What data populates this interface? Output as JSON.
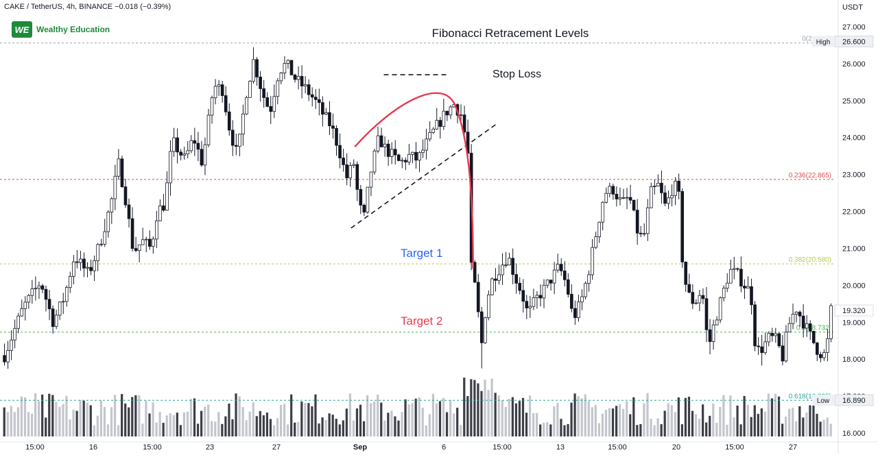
{
  "header": {
    "symbol_line": "CAKE / TetherUS, 4h, BINANCE  −0.018 (−0.39%)",
    "brand_name": "Wealthy Education",
    "brand_logo_text": "WE",
    "currency": "USDT"
  },
  "colors": {
    "up_candle": "#ffffff",
    "down_candle": "#131722",
    "volume_up": "#c3c6cc",
    "volume_down": "#3c3f47",
    "fib_0": "#9ca3ad",
    "fib_236": "#e04b4b",
    "fib_382": "#b8c94a",
    "fib_5": "#4caf50",
    "fib_618": "#26a69a",
    "target_1": "#2962ff",
    "target_2": "#e8384f",
    "arc": "#e8384f"
  },
  "chart_data": {
    "type": "candlestick",
    "title": "Fibonacci Retracement Levels",
    "timeframe": "4h",
    "y_axis": {
      "unit": "USDT",
      "ylim": [
        16.0,
        27.5
      ],
      "ticks": [
        "16.000",
        "17.000",
        "18.000",
        "19.000",
        "20.000",
        "21.000",
        "22.000",
        "23.000",
        "24.000",
        "25.000",
        "26.000",
        "27.000"
      ]
    },
    "x_axis": {
      "ticks": [
        "15:00",
        "16",
        "15:00",
        "23",
        "27",
        "Sep",
        "6",
        "15:00",
        "13",
        "15:00",
        "20",
        "15:00",
        "27"
      ]
    },
    "fib_levels": [
      {
        "ratio": "0",
        "value": 26.56,
        "label": "0(26.560)"
      },
      {
        "ratio": "0.236",
        "value": 22.865,
        "label": "0.236(22.865)"
      },
      {
        "ratio": "0.382",
        "value": 20.58,
        "label": "0.382(20.580)"
      },
      {
        "ratio": "0.5",
        "value": 18.732,
        "label": "0.5(18.732)"
      },
      {
        "ratio": "0.618",
        "value": 16.885,
        "label": "0.618(16.885)"
      }
    ],
    "price_markers": [
      {
        "tag": "High",
        "value": "26.600"
      },
      {
        "tag": "",
        "value": "19.320"
      },
      {
        "tag": "Low",
        "value": "16.890"
      }
    ],
    "last_price": 19.32,
    "annotations": {
      "stop_loss": "Stop Loss",
      "target_1": "Target 1",
      "target_2": "Target 2"
    },
    "trendlines": [
      {
        "name": "rising-trendline",
        "x_from": 27.7,
        "y_from": 21.55,
        "x_to": 39.4,
        "y_to": 24.4
      },
      {
        "name": "stop-loss-line",
        "x_from": 30.3,
        "y_from": 25.7,
        "x_to": 35.3,
        "y_to": 25.7
      }
    ],
    "arc": {
      "points": [
        [
          28.0,
          23.75
        ],
        [
          31.0,
          24.9
        ],
        [
          35.0,
          25.7
        ],
        [
          37.0,
          24.0
        ],
        [
          37.4,
          20.45
        ]
      ]
    },
    "key_points": [
      {
        "x": 0.0,
        "y": 18.1
      },
      {
        "x": 1.5,
        "y": 19.4
      },
      {
        "x": 2.9,
        "y": 20.1
      },
      {
        "x": 3.9,
        "y": 19.0
      },
      {
        "x": 4.8,
        "y": 19.7
      },
      {
        "x": 5.6,
        "y": 20.8
      },
      {
        "x": 6.7,
        "y": 20.3
      },
      {
        "x": 7.6,
        "y": 21.1
      },
      {
        "x": 8.5,
        "y": 22.2
      },
      {
        "x": 9.1,
        "y": 23.3
      },
      {
        "x": 9.6,
        "y": 22.5
      },
      {
        "x": 10.3,
        "y": 20.9
      },
      {
        "x": 11.0,
        "y": 21.2
      },
      {
        "x": 11.7,
        "y": 21.0
      },
      {
        "x": 12.2,
        "y": 22.0
      },
      {
        "x": 12.8,
        "y": 22.2
      },
      {
        "x": 13.4,
        "y": 23.9
      },
      {
        "x": 14.4,
        "y": 23.4
      },
      {
        "x": 15.1,
        "y": 24.0
      },
      {
        "x": 15.8,
        "y": 23.3
      },
      {
        "x": 16.7,
        "y": 25.4
      },
      {
        "x": 17.4,
        "y": 25.3
      },
      {
        "x": 18.0,
        "y": 24.2
      },
      {
        "x": 18.6,
        "y": 23.5
      },
      {
        "x": 19.3,
        "y": 25.2
      },
      {
        "x": 19.9,
        "y": 26.1
      },
      {
        "x": 20.6,
        "y": 25.2
      },
      {
        "x": 21.2,
        "y": 24.7
      },
      {
        "x": 21.9,
        "y": 25.8
      },
      {
        "x": 22.5,
        "y": 26.0
      },
      {
        "x": 23.2,
        "y": 25.6
      },
      {
        "x": 24.1,
        "y": 25.3
      },
      {
        "x": 24.8,
        "y": 25.0
      },
      {
        "x": 25.5,
        "y": 24.6
      },
      {
        "x": 26.1,
        "y": 24.3
      },
      {
        "x": 26.7,
        "y": 23.7
      },
      {
        "x": 27.3,
        "y": 22.9
      },
      {
        "x": 27.9,
        "y": 23.3
      },
      {
        "x": 28.3,
        "y": 22.2
      },
      {
        "x": 28.7,
        "y": 21.8
      },
      {
        "x": 29.2,
        "y": 23.0
      },
      {
        "x": 29.9,
        "y": 24.0
      },
      {
        "x": 30.4,
        "y": 23.7
      },
      {
        "x": 31.0,
        "y": 23.5
      },
      {
        "x": 31.6,
        "y": 23.3
      },
      {
        "x": 32.3,
        "y": 23.5
      },
      {
        "x": 33.0,
        "y": 23.4
      },
      {
        "x": 33.8,
        "y": 23.9
      },
      {
        "x": 34.5,
        "y": 24.3
      },
      {
        "x": 35.3,
        "y": 24.7
      },
      {
        "x": 35.9,
        "y": 24.9
      },
      {
        "x": 36.5,
        "y": 24.6
      },
      {
        "x": 37.0,
        "y": 23.6
      },
      {
        "x": 37.2,
        "y": 20.6
      },
      {
        "x": 37.6,
        "y": 19.9
      },
      {
        "x": 38.1,
        "y": 18.4
      },
      {
        "x": 38.5,
        "y": 19.6
      },
      {
        "x": 39.0,
        "y": 20.2
      },
      {
        "x": 39.6,
        "y": 20.5
      },
      {
        "x": 40.2,
        "y": 20.8
      },
      {
        "x": 40.8,
        "y": 20.2
      },
      {
        "x": 41.3,
        "y": 19.8
      },
      {
        "x": 41.8,
        "y": 19.2
      },
      {
        "x": 42.4,
        "y": 19.6
      },
      {
        "x": 43.1,
        "y": 19.9
      },
      {
        "x": 43.7,
        "y": 20.2
      },
      {
        "x": 44.3,
        "y": 20.5
      },
      {
        "x": 44.9,
        "y": 20.0
      },
      {
        "x": 45.4,
        "y": 19.1
      },
      {
        "x": 46.0,
        "y": 19.5
      },
      {
        "x": 46.6,
        "y": 20.3
      },
      {
        "x": 47.3,
        "y": 21.5
      },
      {
        "x": 47.9,
        "y": 22.5
      },
      {
        "x": 48.6,
        "y": 22.6
      },
      {
        "x": 49.3,
        "y": 22.2
      },
      {
        "x": 49.9,
        "y": 22.4
      },
      {
        "x": 50.5,
        "y": 21.5
      },
      {
        "x": 51.0,
        "y": 21.2
      },
      {
        "x": 51.6,
        "y": 22.5
      },
      {
        "x": 52.2,
        "y": 22.7
      },
      {
        "x": 52.8,
        "y": 22.1
      },
      {
        "x": 53.3,
        "y": 22.6
      },
      {
        "x": 53.8,
        "y": 22.7
      },
      {
        "x": 54.1,
        "y": 20.8
      },
      {
        "x": 54.5,
        "y": 19.8
      },
      {
        "x": 55.1,
        "y": 19.5
      },
      {
        "x": 55.7,
        "y": 19.9
      },
      {
        "x": 56.2,
        "y": 18.3
      },
      {
        "x": 56.7,
        "y": 19.0
      },
      {
        "x": 57.3,
        "y": 19.7
      },
      {
        "x": 57.9,
        "y": 20.4
      },
      {
        "x": 58.5,
        "y": 20.3
      },
      {
        "x": 59.1,
        "y": 20.0
      },
      {
        "x": 59.6,
        "y": 19.8
      },
      {
        "x": 60.0,
        "y": 18.2
      },
      {
        "x": 60.5,
        "y": 18.3
      },
      {
        "x": 61.1,
        "y": 18.6
      },
      {
        "x": 61.7,
        "y": 18.5
      },
      {
        "x": 62.1,
        "y": 18.0
      },
      {
        "x": 62.6,
        "y": 18.9
      },
      {
        "x": 63.2,
        "y": 19.4
      },
      {
        "x": 63.8,
        "y": 19.0
      },
      {
        "x": 64.4,
        "y": 18.6
      },
      {
        "x": 65.0,
        "y": 18.2
      },
      {
        "x": 65.6,
        "y": 18.1
      },
      {
        "x": 66.0,
        "y": 19.32
      }
    ],
    "volume_ylim": [
      0,
      100
    ]
  }
}
